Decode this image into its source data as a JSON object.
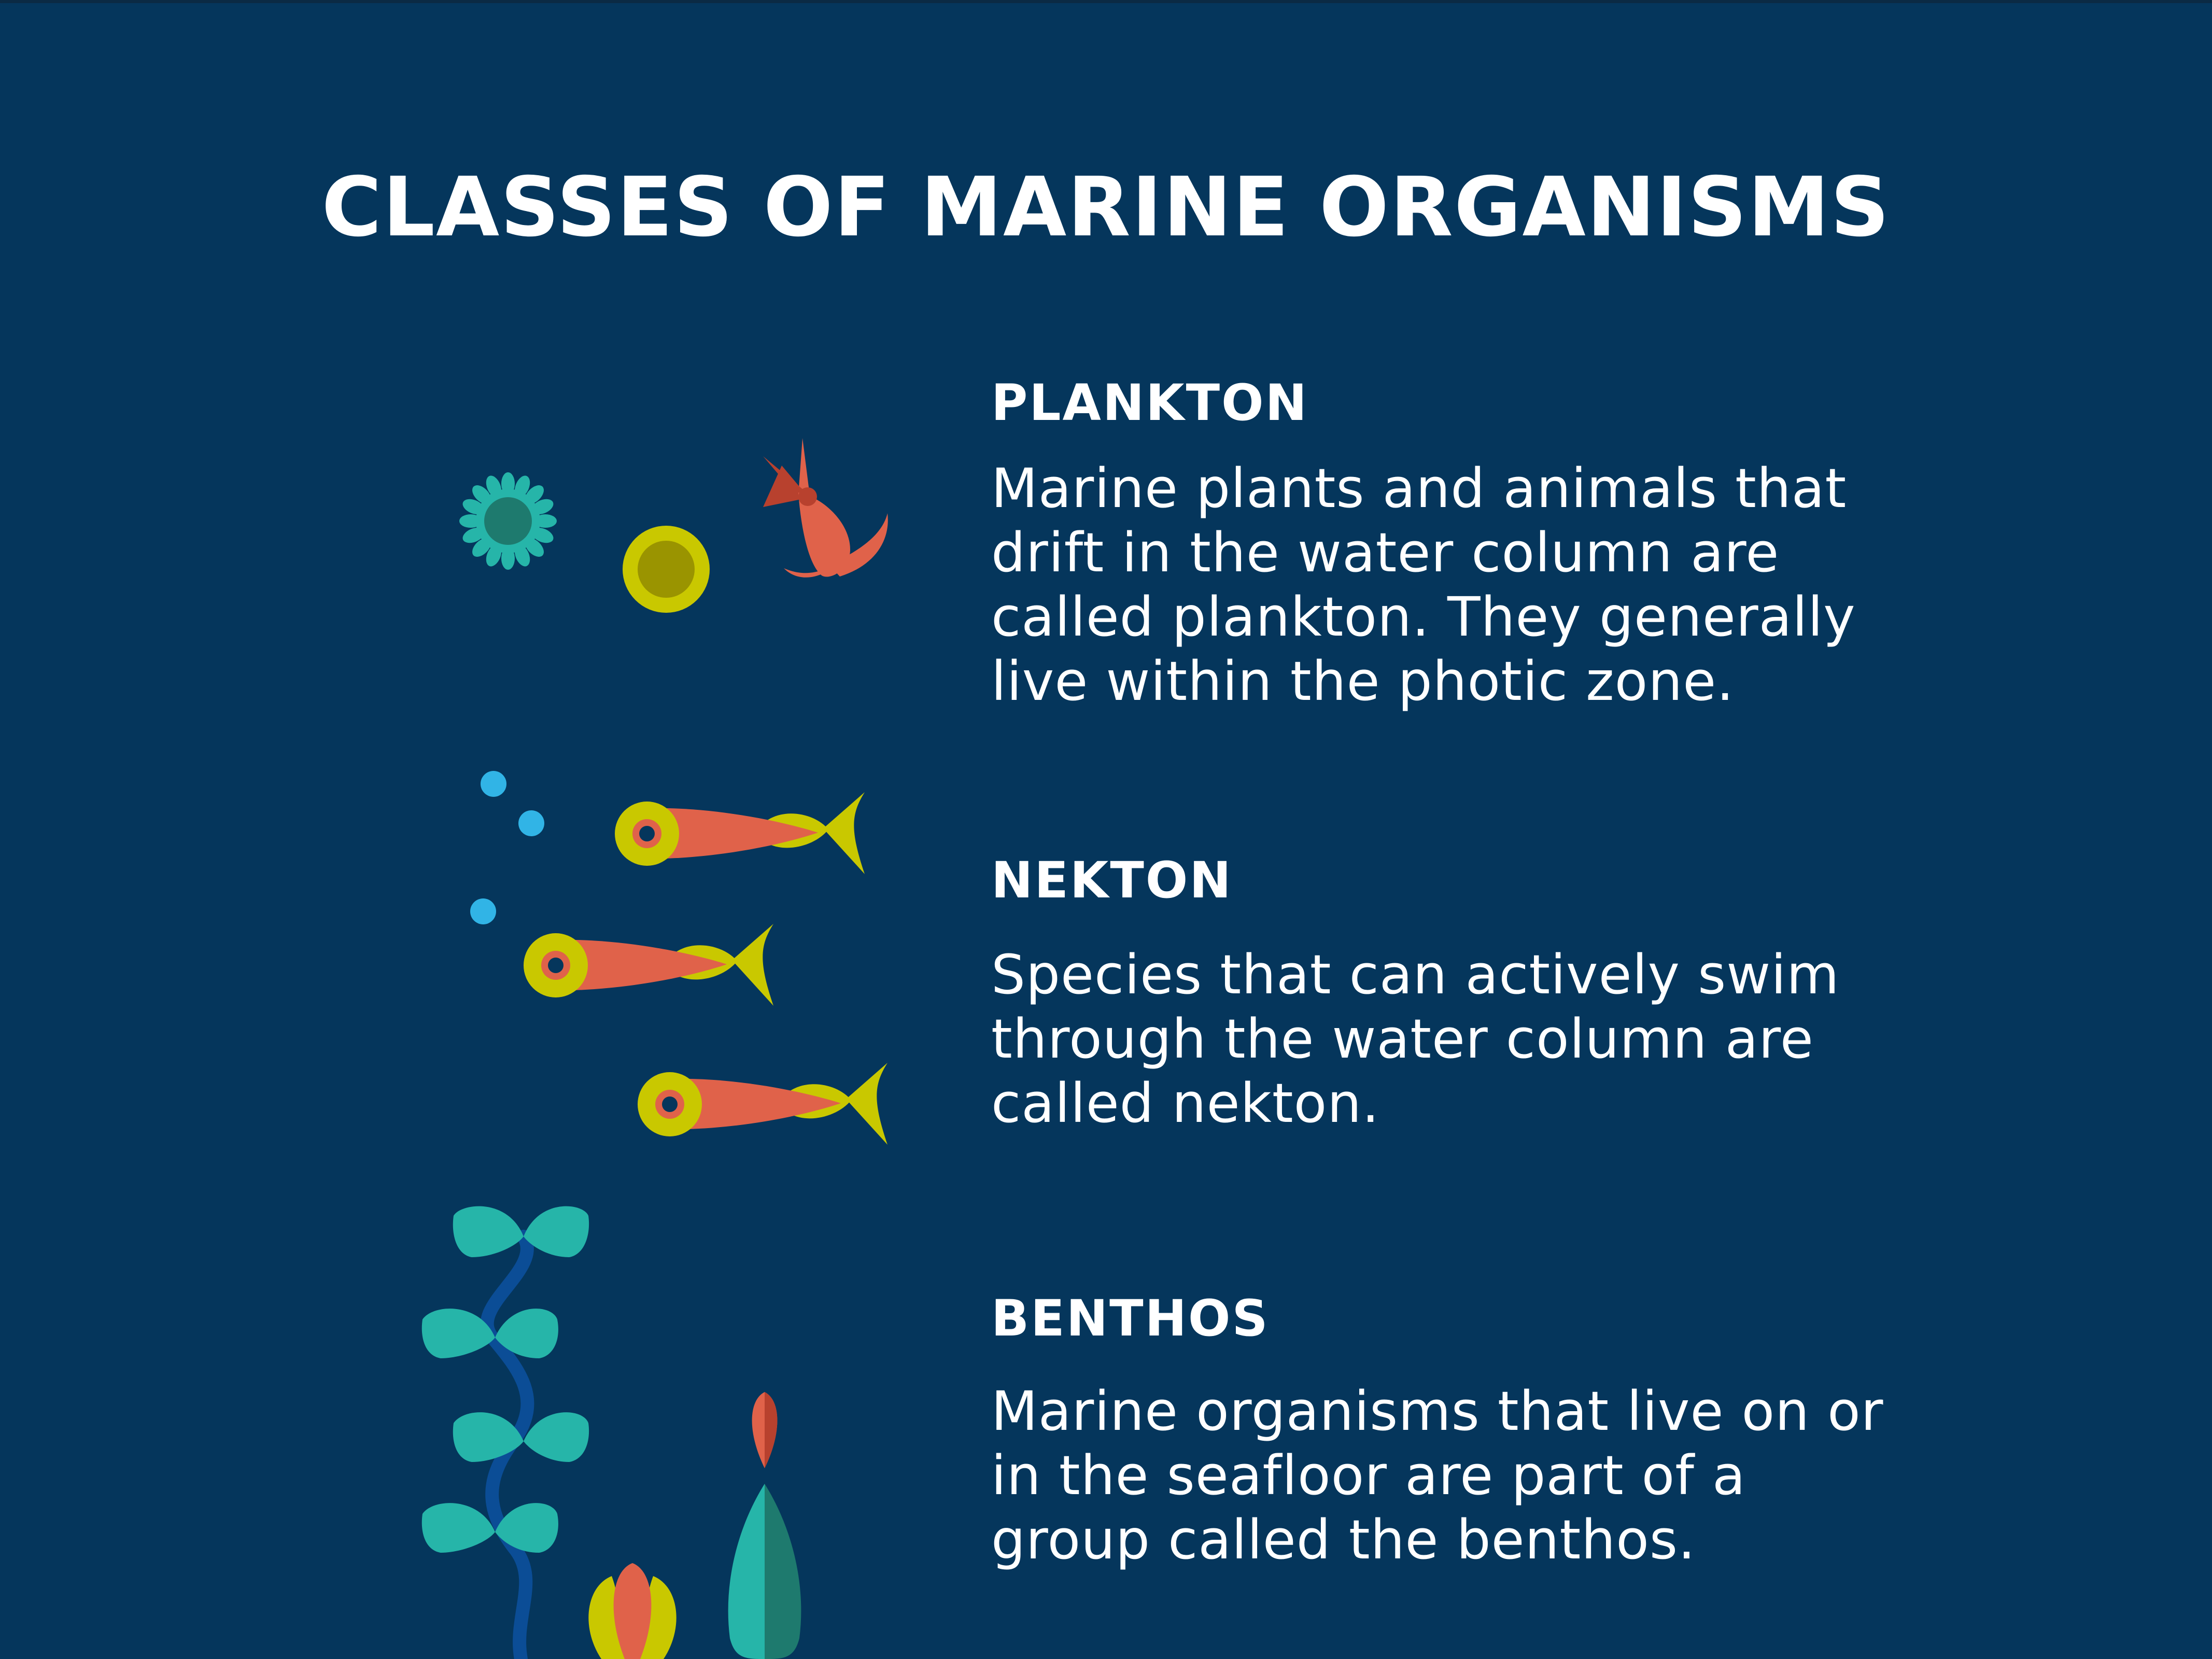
{
  "title": "CLASSES OF MARINE ORGANISMS",
  "sections": [
    {
      "heading": "PLANKTON",
      "body": "Marine plants and animals that drift in the water column are called plankton. They generally live within the photic zone."
    },
    {
      "heading": "NEKTON",
      "body": "Species that can actively swim through the water column are called nekton."
    },
    {
      "heading": "BENTHOS",
      "body": "Marine organisms that live on or in the seafloor are part of a group called the benthos."
    }
  ],
  "colors": {
    "background": "#05365c",
    "teal": "#26b5a9",
    "dark_teal": "#1e7a6e",
    "lime": "#c9c800",
    "olive": "#9a9400",
    "coral": "#e0624a",
    "dark_coral": "#b8412e",
    "bubble": "#31b4e6",
    "stem": "#0b4d96"
  }
}
